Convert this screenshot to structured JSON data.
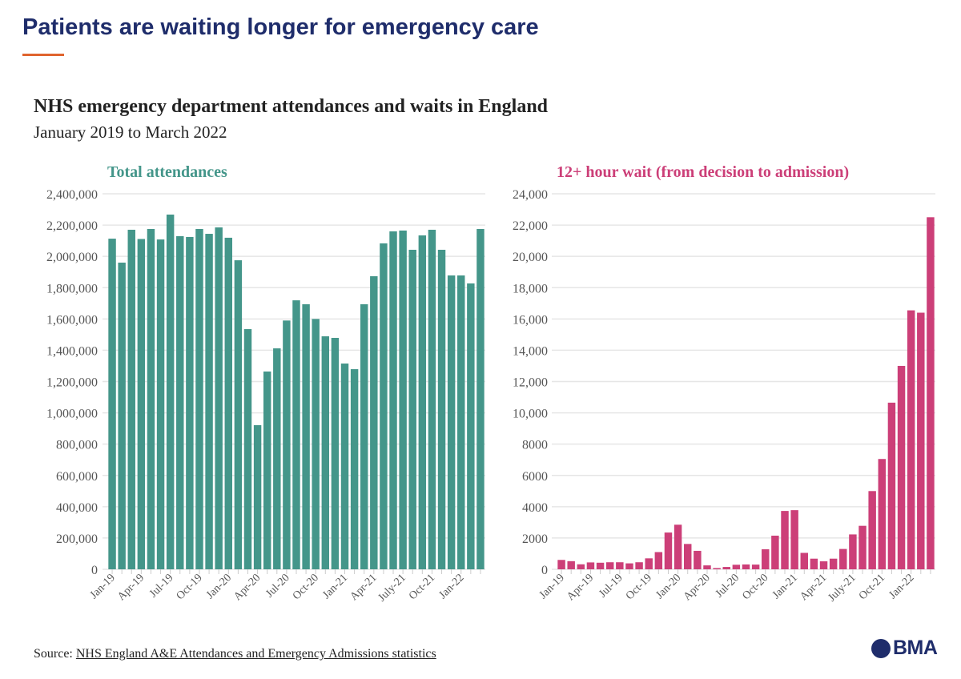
{
  "header": {
    "headline": "Patients are waiting longer for emergency care",
    "accent": "#e0642e"
  },
  "chart_title": "NHS emergency department attendances and waits in England",
  "chart_subtitle": "January 2019 to March 2022",
  "source": {
    "label": "Source:",
    "link": "NHS England A&E Attendances and Emergency Admissions statistics"
  },
  "logo": {
    "text": "BMA"
  },
  "chart_data": [
    {
      "type": "bar",
      "title": "Total attendances",
      "color": "#44968a",
      "ylim": [
        0,
        2400000
      ],
      "grid": true,
      "yticks": [
        "0",
        "200,000",
        "400,000",
        "600,000",
        "800,000",
        "1,000,000",
        "1,200,000",
        "1,400,000",
        "1,600,000",
        "1,800,000",
        "2,000,000",
        "2,200,000",
        "2,400,000"
      ],
      "xticks": [
        "Jan-19",
        "Apr-19",
        "Jul-19",
        "Oct-19",
        "Jan-20",
        "Apr-20",
        "Jul-20",
        "Oct-20",
        "Jan-21",
        "Apr-21",
        "July-21",
        "Oct-21",
        "Jan-22"
      ],
      "values": [
        2113000,
        1960000,
        2170000,
        2111000,
        2175000,
        2108000,
        2267000,
        2129000,
        2124000,
        2175000,
        2144000,
        2185000,
        2119000,
        1975000,
        1535000,
        921000,
        1264000,
        1412000,
        1590000,
        1719000,
        1694000,
        1600000,
        1489000,
        1479000,
        1315000,
        1279000,
        1694000,
        1873000,
        2083000,
        2160000,
        2165000,
        2042000,
        2134000,
        2170000,
        2042000,
        1878000,
        1878000,
        1827000,
        2175000
      ]
    },
    {
      "type": "bar",
      "title": "12+ hour wait (from decision to admission)",
      "color": "#cc3f78",
      "ylim": [
        0,
        24000
      ],
      "grid": true,
      "yticks": [
        "0",
        "2000",
        "4000",
        "6000",
        "8000",
        "10,000",
        "12,000",
        "14,000",
        "16,000",
        "18,000",
        "20,000",
        "22,000",
        "24,000"
      ],
      "xticks": [
        "Jan-19",
        "Apr-19",
        "Jul-19",
        "Oct-19",
        "Jan-20",
        "Apr-20",
        "Jul-20",
        "Oct-20",
        "Jan-21",
        "Apr-21",
        "July-21",
        "Oct-21",
        "Jan-22"
      ],
      "values": [
        600,
        520,
        320,
        440,
        420,
        450,
        450,
        380,
        450,
        700,
        1100,
        2350,
        2850,
        1620,
        1180,
        250,
        80,
        150,
        290,
        310,
        300,
        1280,
        2150,
        3730,
        3780,
        1050,
        680,
        510,
        680,
        1300,
        2230,
        2780,
        5000,
        7050,
        10650,
        13000,
        16550,
        16400,
        22500
      ]
    }
  ]
}
